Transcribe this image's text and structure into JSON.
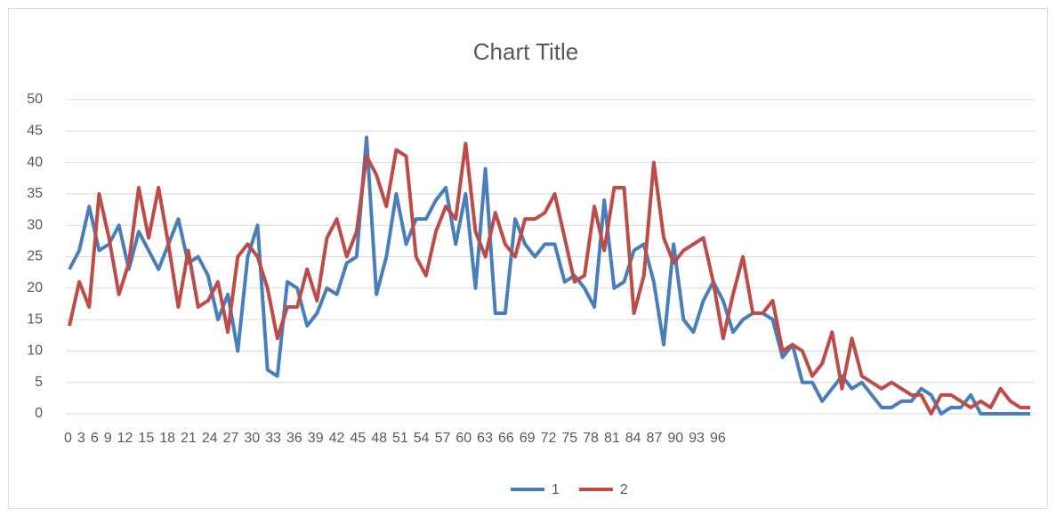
{
  "chart_data": {
    "type": "line",
    "title": "Chart Title",
    "categories": [
      0,
      null,
      null,
      3,
      null,
      null,
      6,
      null,
      null,
      9,
      null,
      null,
      12,
      null,
      null,
      15,
      null,
      null,
      18,
      null,
      null,
      21,
      null,
      null,
      24,
      null,
      null,
      27,
      null,
      null,
      30,
      null,
      null,
      33,
      null,
      null,
      36,
      null,
      null,
      39,
      null,
      null,
      42,
      null,
      null,
      45,
      null,
      null,
      48,
      null,
      null,
      51,
      null,
      null,
      54,
      null,
      null,
      57,
      null,
      null,
      60,
      null,
      null,
      63,
      null,
      null,
      66,
      null,
      null,
      69,
      null,
      null,
      72,
      null,
      null,
      75,
      null,
      null,
      78,
      null,
      null,
      81,
      null,
      null,
      84,
      null,
      null,
      87,
      null,
      null,
      90,
      null,
      null,
      93,
      null,
      null,
      96,
      null
    ],
    "series": [
      {
        "name": "1",
        "color": "#4a7ebb",
        "values": [
          23,
          26,
          33,
          26,
          27,
          30,
          23,
          29,
          26,
          23,
          27,
          31,
          24,
          25,
          22,
          15,
          19,
          10,
          25,
          30,
          7,
          6,
          21,
          20,
          14,
          16,
          20,
          19,
          24,
          25,
          44,
          19,
          25,
          35,
          27,
          31,
          31,
          34,
          36,
          27,
          35,
          20,
          39,
          16,
          16,
          31,
          27,
          25,
          27,
          27,
          21,
          22,
          20,
          17,
          34,
          20,
          21,
          26,
          27,
          21,
          11,
          27,
          15,
          13,
          18,
          21,
          18,
          13,
          15,
          16,
          16,
          15,
          9,
          11,
          5,
          5,
          2,
          4,
          6,
          4,
          5,
          3,
          1,
          1,
          2,
          2,
          4,
          3,
          0,
          1,
          1,
          3,
          0,
          0,
          0,
          0,
          0,
          0
        ]
      },
      {
        "name": "2",
        "color": "#be4b48",
        "values": [
          14,
          21,
          17,
          35,
          28,
          19,
          24,
          36,
          28,
          36,
          27,
          17,
          26,
          17,
          18,
          21,
          13,
          25,
          27,
          25,
          20,
          12,
          17,
          17,
          23,
          18,
          28,
          31,
          25,
          29,
          41,
          38,
          33,
          42,
          41,
          25,
          22,
          29,
          33,
          31,
          43,
          29,
          25,
          32,
          27,
          25,
          31,
          31,
          32,
          35,
          28,
          21,
          22,
          33,
          26,
          36,
          36,
          16,
          22,
          40,
          28,
          24,
          26,
          27,
          28,
          21,
          12,
          19,
          25,
          16,
          16,
          18,
          10,
          11,
          10,
          6,
          8,
          13,
          4,
          12,
          6,
          5,
          4,
          5,
          4,
          3,
          3,
          0,
          3,
          3,
          2,
          1,
          2,
          1,
          4,
          2,
          1,
          1
        ]
      }
    ],
    "ylim": [
      0,
      50
    ],
    "yticks": [
      0,
      5,
      10,
      15,
      20,
      25,
      30,
      35,
      40,
      45,
      50
    ],
    "grid": true,
    "legend": "bottom"
  }
}
